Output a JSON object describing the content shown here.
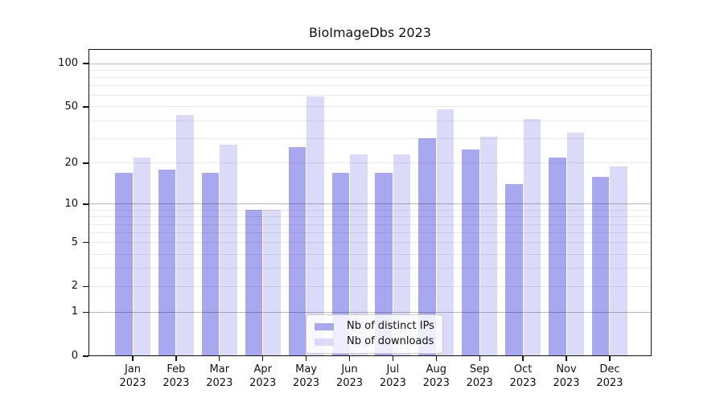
{
  "title": "BioImageDbs 2023",
  "chart_data": {
    "type": "bar",
    "title": "BioImageDbs 2023",
    "x": [
      "Jan",
      "Feb",
      "Mar",
      "Apr",
      "May",
      "Jun",
      "Jul",
      "Aug",
      "Sep",
      "Oct",
      "Nov",
      "Dec"
    ],
    "x_year": "2023",
    "series": [
      {
        "name": "Nb of distinct IPs",
        "color": "#a8a8f0",
        "values": [
          17,
          18,
          17,
          9,
          26,
          17,
          17,
          30,
          25,
          14,
          22,
          16
        ]
      },
      {
        "name": "Nb of downloads",
        "color": "#dbdbf9",
        "values": [
          22,
          44,
          27,
          9,
          59,
          23,
          23,
          48,
          31,
          41,
          33,
          19
        ]
      }
    ],
    "yscale": "log1p",
    "ylim": [
      0,
      126
    ],
    "y_tick_values": [
      0,
      1,
      2,
      5,
      10,
      20,
      50,
      100
    ],
    "grid_minor_values": [
      2,
      3,
      4,
      5,
      6,
      7,
      8,
      9,
      20,
      30,
      40,
      50,
      60,
      70,
      80,
      90
    ],
    "grid_major_values": [
      1,
      10,
      100
    ],
    "legend_position": "lower center",
    "colors": {
      "grid_major": "rgba(0,0,0,0.27)",
      "grid_minor": "rgba(0,0,0,0.08)",
      "axis": "#111111",
      "text": "#111111",
      "background": "#ffffff"
    }
  }
}
